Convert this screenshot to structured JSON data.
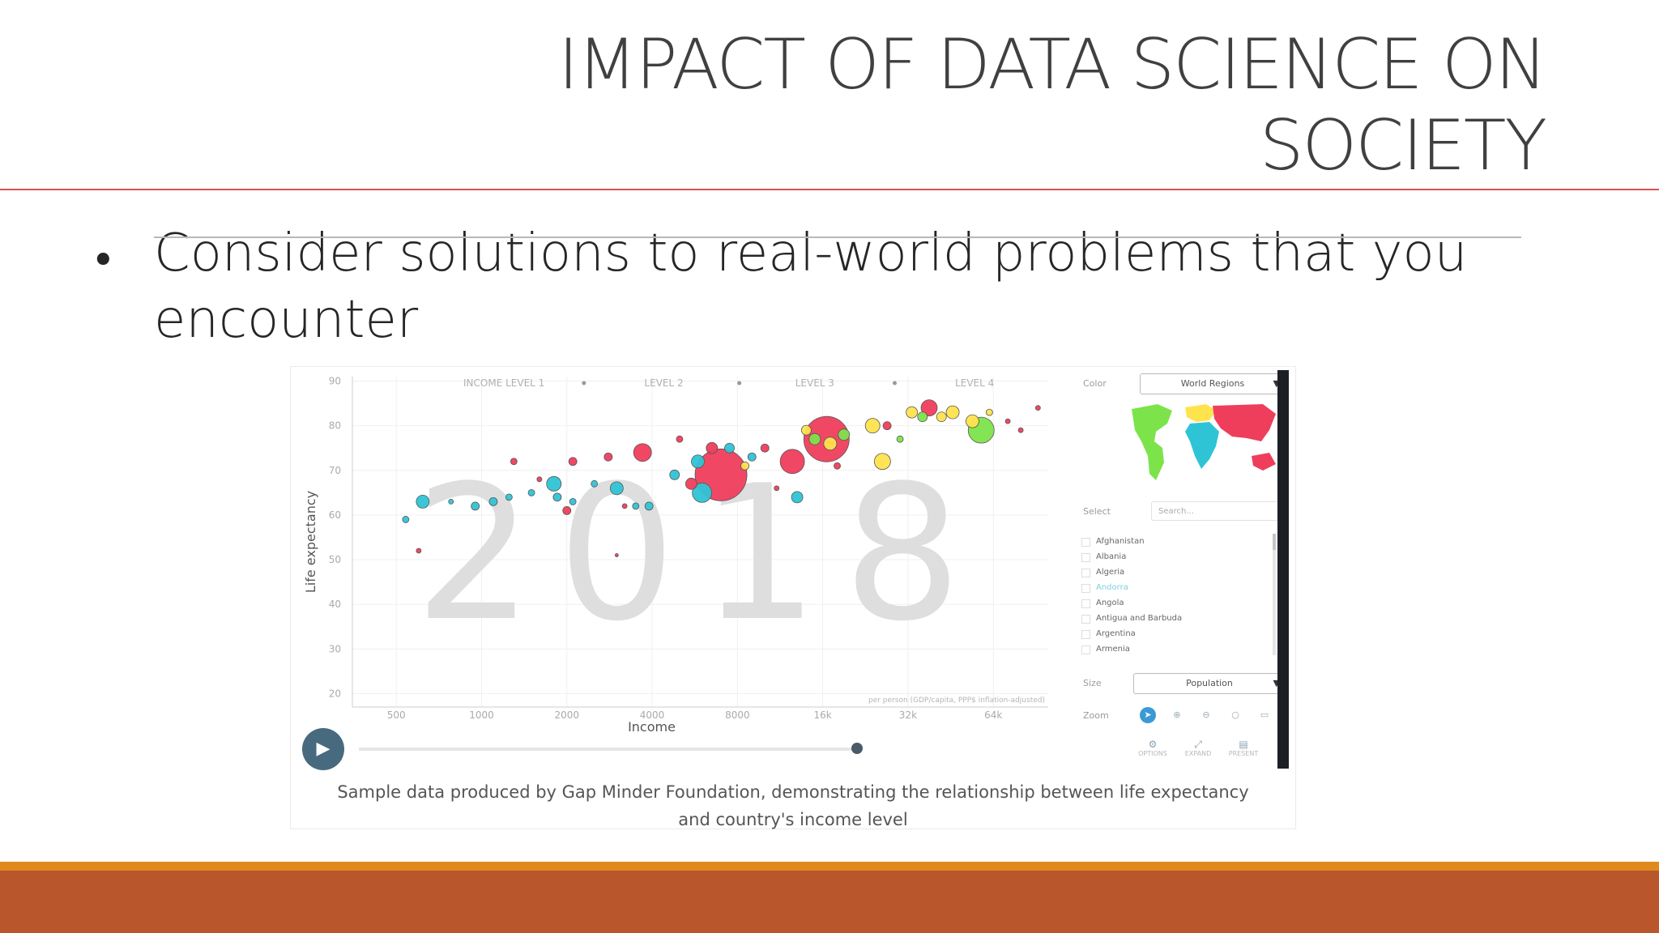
{
  "slide": {
    "title_line1": "IMPACT OF DATA SCIENCE ON",
    "title_line2": "SOCIETY",
    "bullet_symbol": "•",
    "bullet_line1": "Consider solutions to real-world problems that you",
    "bullet_line2": "encounter",
    "caption_line1": "Sample data produced by Gap Minder Foundation, demonstrating the relationship between life expectancy",
    "caption_line2": "and country's income level"
  },
  "gapminder": {
    "color_label": "Color",
    "color_value": "World Regions",
    "select_label": "Select",
    "search_placeholder": "Search...",
    "countries": [
      "Afghanistan",
      "Albania",
      "Algeria",
      "Andorra",
      "Angola",
      "Antigua and Barbuda",
      "Argentina",
      "Armenia"
    ],
    "highlighted_country": "Andorra",
    "size_label": "Size",
    "size_value": "Population",
    "zoom_label": "Zoom",
    "zoom_icons": [
      "cursor-icon",
      "zoom-in-icon",
      "zoom-out-icon",
      "reset-icon",
      "zoom-level-icon"
    ],
    "bottom_icons": [
      {
        "icon": "gear-icon",
        "label": "OPTIONS"
      },
      {
        "icon": "expand-icon",
        "label": "EXPAND"
      },
      {
        "icon": "present-icon",
        "label": "PRESENT"
      }
    ],
    "play_icon": "play-icon"
  },
  "chart_data": {
    "type": "scatter",
    "title": "",
    "background_year": "2018",
    "xlabel": "Income",
    "ylabel": "Life expectancy",
    "x_scale": "log",
    "x_ticks": [
      "500",
      "1000",
      "2000",
      "4000",
      "8000",
      "16k",
      "32k",
      "64k"
    ],
    "x_tick_values": [
      500,
      1000,
      2000,
      4000,
      8000,
      16000,
      32000,
      64000
    ],
    "y_ticks": [
      20,
      30,
      40,
      50,
      60,
      70,
      80,
      90
    ],
    "xlim": [
      350,
      100000
    ],
    "ylim": [
      17,
      91
    ],
    "x_unit_note": "per person (GDP/capita, PPP$ inflation-adjusted)",
    "income_levels": [
      "INCOME LEVEL 1",
      "LEVEL 2",
      "LEVEL 3",
      "LEVEL 4"
    ],
    "region_colors": {
      "africa": "#2ec4d6",
      "asia": "#ef3e5c",
      "americas": "#ffe34d",
      "europe": "#7de34b"
    },
    "points": [
      {
        "x": 620,
        "y": 63,
        "r": 8,
        "region": "africa"
      },
      {
        "x": 540,
        "y": 59,
        "r": 4,
        "region": "africa"
      },
      {
        "x": 600,
        "y": 52,
        "r": 3,
        "region": "asia"
      },
      {
        "x": 780,
        "y": 63,
        "r": 3,
        "region": "africa"
      },
      {
        "x": 950,
        "y": 62,
        "r": 5,
        "region": "africa"
      },
      {
        "x": 1100,
        "y": 63,
        "r": 5,
        "region": "africa"
      },
      {
        "x": 1250,
        "y": 64,
        "r": 4,
        "region": "africa"
      },
      {
        "x": 1300,
        "y": 72,
        "r": 4,
        "region": "asia"
      },
      {
        "x": 1500,
        "y": 65,
        "r": 4,
        "region": "africa"
      },
      {
        "x": 1600,
        "y": 68,
        "r": 3,
        "region": "asia"
      },
      {
        "x": 1800,
        "y": 67,
        "r": 9,
        "region": "africa"
      },
      {
        "x": 1850,
        "y": 64,
        "r": 5,
        "region": "africa"
      },
      {
        "x": 2000,
        "y": 61,
        "r": 5,
        "region": "asia"
      },
      {
        "x": 2100,
        "y": 63,
        "r": 4,
        "region": "africa"
      },
      {
        "x": 2100,
        "y": 72,
        "r": 5,
        "region": "asia"
      },
      {
        "x": 2500,
        "y": 67,
        "r": 4,
        "region": "africa"
      },
      {
        "x": 2800,
        "y": 73,
        "r": 5,
        "region": "asia"
      },
      {
        "x": 3000,
        "y": 66,
        "r": 8,
        "region": "africa"
      },
      {
        "x": 3200,
        "y": 62,
        "r": 3,
        "region": "asia"
      },
      {
        "x": 3000,
        "y": 51,
        "r": 2,
        "region": "asia"
      },
      {
        "x": 3500,
        "y": 62,
        "r": 4,
        "region": "africa"
      },
      {
        "x": 3700,
        "y": 74,
        "r": 11,
        "region": "asia"
      },
      {
        "x": 3900,
        "y": 62,
        "r": 5,
        "region": "africa"
      },
      {
        "x": 4800,
        "y": 69,
        "r": 6,
        "region": "africa"
      },
      {
        "x": 5000,
        "y": 77,
        "r": 4,
        "region": "asia"
      },
      {
        "x": 5500,
        "y": 67,
        "r": 7,
        "region": "asia"
      },
      {
        "x": 5800,
        "y": 72,
        "r": 8,
        "region": "africa"
      },
      {
        "x": 6000,
        "y": 65,
        "r": 12,
        "region": "africa"
      },
      {
        "x": 7000,
        "y": 69,
        "r": 32,
        "region": "asia"
      },
      {
        "x": 6500,
        "y": 75,
        "r": 7,
        "region": "asia"
      },
      {
        "x": 7500,
        "y": 75,
        "r": 6,
        "region": "africa"
      },
      {
        "x": 8500,
        "y": 71,
        "r": 5,
        "region": "americas"
      },
      {
        "x": 9000,
        "y": 73,
        "r": 5,
        "region": "africa"
      },
      {
        "x": 10000,
        "y": 75,
        "r": 5,
        "region": "asia"
      },
      {
        "x": 11000,
        "y": 66,
        "r": 3,
        "region": "asia"
      },
      {
        "x": 12500,
        "y": 72,
        "r": 15,
        "region": "asia"
      },
      {
        "x": 13000,
        "y": 64,
        "r": 7,
        "region": "africa"
      },
      {
        "x": 14000,
        "y": 79,
        "r": 6,
        "region": "americas"
      },
      {
        "x": 15000,
        "y": 77,
        "r": 7,
        "region": "europe"
      },
      {
        "x": 16500,
        "y": 77,
        "r": 28,
        "region": "asia"
      },
      {
        "x": 17000,
        "y": 76,
        "r": 8,
        "region": "americas"
      },
      {
        "x": 19000,
        "y": 78,
        "r": 7,
        "region": "europe"
      },
      {
        "x": 18000,
        "y": 71,
        "r": 4,
        "region": "asia"
      },
      {
        "x": 24000,
        "y": 80,
        "r": 9,
        "region": "americas"
      },
      {
        "x": 26000,
        "y": 72,
        "r": 10,
        "region": "americas"
      },
      {
        "x": 27000,
        "y": 80,
        "r": 5,
        "region": "asia"
      },
      {
        "x": 30000,
        "y": 77,
        "r": 4,
        "region": "europe"
      },
      {
        "x": 33000,
        "y": 83,
        "r": 7,
        "region": "americas"
      },
      {
        "x": 36000,
        "y": 82,
        "r": 6,
        "region": "europe"
      },
      {
        "x": 38000,
        "y": 84,
        "r": 10,
        "region": "asia"
      },
      {
        "x": 42000,
        "y": 82,
        "r": 6,
        "region": "americas"
      },
      {
        "x": 46000,
        "y": 83,
        "r": 8,
        "region": "americas"
      },
      {
        "x": 54000,
        "y": 81,
        "r": 8,
        "region": "americas"
      },
      {
        "x": 58000,
        "y": 79,
        "r": 16,
        "region": "europe"
      },
      {
        "x": 62000,
        "y": 83,
        "r": 4,
        "region": "americas"
      },
      {
        "x": 72000,
        "y": 81,
        "r": 3,
        "region": "asia"
      },
      {
        "x": 80000,
        "y": 79,
        "r": 3,
        "region": "asia"
      },
      {
        "x": 92000,
        "y": 84,
        "r": 3,
        "region": "asia"
      }
    ]
  }
}
